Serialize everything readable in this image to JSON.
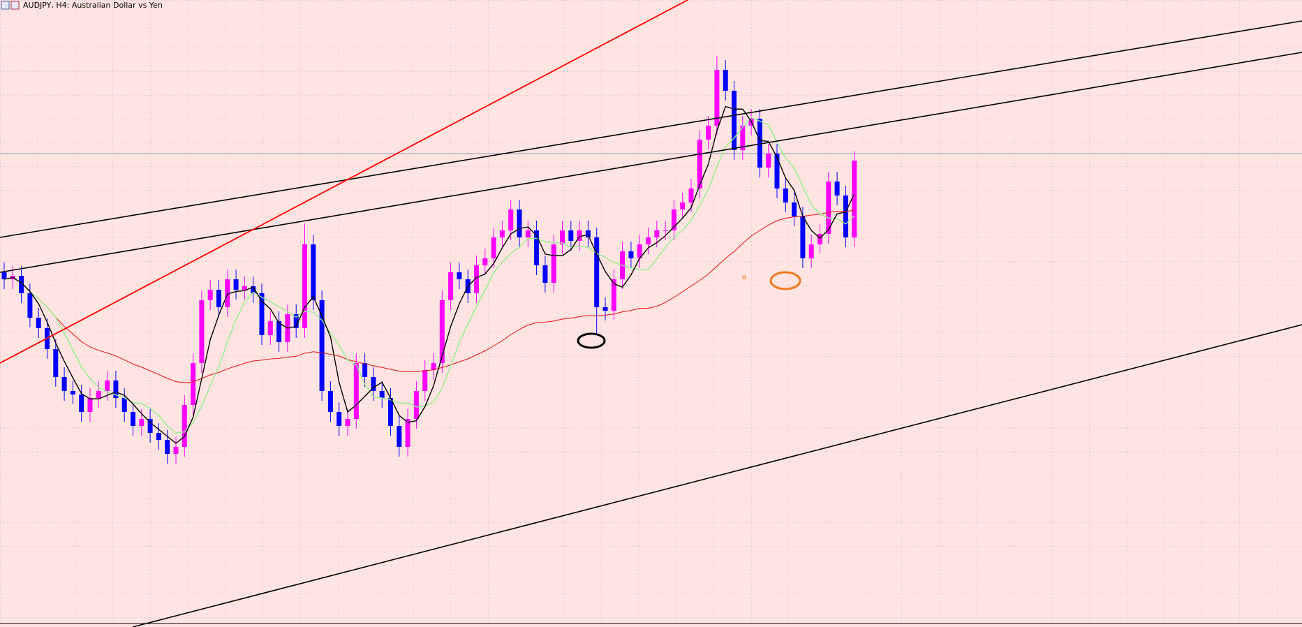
{
  "chart_data": {
    "type": "candlestick",
    "title": "AUDJPY, H4:  Australian Dollar vs Yen",
    "up_color": "#ff00ff",
    "down_color": "#0000ff",
    "ylim": [
      0,
      898
    ],
    "open": [
      508,
      498,
      503,
      478,
      443,
      428,
      398,
      358,
      338,
      333,
      308,
      328,
      338,
      353,
      328,
      308,
      288,
      298,
      278,
      268,
      248,
      258,
      318,
      378,
      468,
      483,
      458,
      498,
      483,
      488,
      478,
      418,
      438,
      408,
      448,
      428,
      548,
      468,
      338,
      308,
      288,
      298,
      378,
      358,
      338,
      328,
      288,
      258,
      298,
      338,
      368,
      378,
      468,
      508,
      498,
      478,
      518,
      528,
      558,
      568,
      598,
      558,
      568,
      518,
      493,
      548,
      568,
      553,
      568,
      558,
      458,
      453,
      498,
      538,
      528,
      548,
      558,
      568,
      568,
      598,
      608,
      628,
      698,
      718,
      798,
      768,
      683,
      718,
      728,
      658,
      678,
      628,
      608,
      588,
      528,
      548,
      563,
      638,
      618,
      558
    ],
    "high": [
      522,
      517,
      517,
      492,
      457,
      442,
      412,
      372,
      352,
      347,
      342,
      352,
      367,
      367,
      342,
      322,
      312,
      312,
      292,
      282,
      272,
      332,
      392,
      482,
      497,
      497,
      512,
      512,
      502,
      502,
      492,
      452,
      452,
      462,
      462,
      578,
      562,
      482,
      352,
      322,
      312,
      392,
      392,
      372,
      352,
      342,
      302,
      312,
      352,
      382,
      392,
      482,
      522,
      522,
      512,
      532,
      542,
      572,
      582,
      612,
      612,
      582,
      582,
      532,
      562,
      582,
      582,
      582,
      582,
      572,
      472,
      512,
      552,
      552,
      562,
      572,
      582,
      582,
      612,
      622,
      642,
      712,
      732,
      818,
      812,
      782,
      732,
      742,
      742,
      692,
      692,
      642,
      622,
      602,
      562,
      577,
      652,
      652,
      632,
      682
    ],
    "low": [
      484,
      484,
      464,
      429,
      414,
      384,
      344,
      324,
      319,
      294,
      294,
      314,
      324,
      314,
      294,
      274,
      274,
      264,
      254,
      234,
      234,
      244,
      304,
      364,
      454,
      444,
      444,
      469,
      469,
      464,
      404,
      404,
      394,
      394,
      414,
      414,
      454,
      324,
      294,
      274,
      274,
      284,
      344,
      324,
      314,
      274,
      244,
      244,
      284,
      324,
      354,
      364,
      454,
      484,
      464,
      464,
      504,
      514,
      544,
      554,
      544,
      544,
      504,
      479,
      479,
      534,
      539,
      539,
      544,
      418,
      439,
      439,
      484,
      514,
      514,
      534,
      544,
      554,
      554,
      584,
      594,
      614,
      684,
      704,
      754,
      669,
      669,
      704,
      644,
      644,
      614,
      594,
      574,
      514,
      514,
      534,
      549,
      604,
      544,
      544
    ],
    "close": [
      498,
      503,
      478,
      443,
      428,
      398,
      358,
      338,
      333,
      308,
      328,
      338,
      353,
      328,
      308,
      288,
      298,
      278,
      268,
      248,
      258,
      318,
      378,
      468,
      483,
      458,
      498,
      483,
      488,
      478,
      418,
      438,
      408,
      448,
      428,
      548,
      468,
      338,
      308,
      288,
      298,
      378,
      358,
      338,
      328,
      288,
      258,
      298,
      338,
      368,
      378,
      468,
      508,
      498,
      478,
      518,
      528,
      558,
      568,
      598,
      558,
      568,
      518,
      493,
      548,
      568,
      553,
      568,
      558,
      458,
      453,
      498,
      538,
      528,
      548,
      558,
      568,
      568,
      598,
      608,
      628,
      698,
      718,
      798,
      768,
      683,
      718,
      728,
      658,
      678,
      628,
      608,
      588,
      528,
      548,
      563,
      638,
      618,
      558,
      668
    ]
  }
}
